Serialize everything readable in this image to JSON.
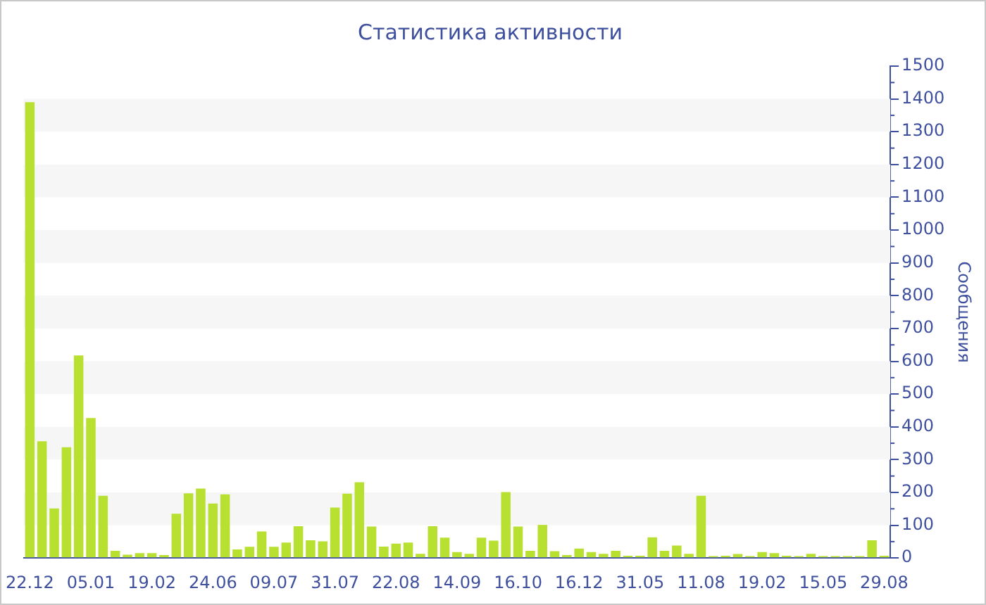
{
  "chart_data": {
    "type": "bar",
    "title": "Статистика активности",
    "ylabel": "Сообщения",
    "categories": [
      "22.12",
      null,
      null,
      null,
      null,
      "05.01",
      null,
      null,
      null,
      null,
      "19.02",
      null,
      null,
      null,
      null,
      "24.06",
      null,
      null,
      null,
      null,
      "09.07",
      null,
      null,
      null,
      null,
      "31.07",
      null,
      null,
      null,
      null,
      "22.08",
      null,
      null,
      null,
      null,
      "14.09",
      null,
      null,
      null,
      null,
      "16.10",
      null,
      null,
      null,
      null,
      "16.12",
      null,
      null,
      null,
      null,
      "31.05",
      null,
      null,
      null,
      null,
      "11.08",
      null,
      null,
      null,
      null,
      "19.02",
      null,
      null,
      null,
      null,
      "15.05",
      null,
      null,
      null,
      null,
      "29.08"
    ],
    "values": [
      1390,
      356,
      151,
      338,
      618,
      427,
      190,
      22,
      10,
      15,
      15,
      9,
      135,
      197,
      212,
      166,
      194,
      26,
      34,
      81,
      34,
      47,
      97,
      54,
      51,
      154,
      196,
      231,
      96,
      35,
      44,
      47,
      13,
      97,
      62,
      18,
      13,
      62,
      53,
      201,
      96,
      22,
      101,
      21,
      9,
      29,
      18,
      13,
      22,
      7,
      7,
      63,
      22,
      38,
      13,
      190,
      6,
      7,
      12,
      6,
      18,
      15,
      7,
      6,
      13,
      6,
      6,
      6,
      6,
      54,
      7
    ],
    "color": "#b8e030",
    "ylim": [
      0,
      1500
    ],
    "yticks": [
      0,
      100,
      200,
      300,
      400,
      500,
      600,
      700,
      800,
      900,
      1000,
      1100,
      1200,
      1300,
      1400,
      1500
    ],
    "bands": [
      {
        "axis": "y",
        "from": 100,
        "to": 200,
        "color": "#f6f6f6"
      },
      {
        "axis": "y",
        "from": 300,
        "to": 400,
        "color": "#f6f6f6"
      },
      {
        "axis": "y",
        "from": 500,
        "to": 600,
        "color": "#f6f6f6"
      },
      {
        "axis": "y",
        "from": 700,
        "to": 800,
        "color": "#f6f6f6"
      },
      {
        "axis": "y",
        "from": 900,
        "to": 1000,
        "color": "#f6f6f6"
      },
      {
        "axis": "y",
        "from": 1100,
        "to": 1200,
        "color": "#f6f6f6"
      },
      {
        "axis": "y",
        "from": 1300,
        "to": 1400,
        "color": "#f6f6f6"
      }
    ]
  }
}
